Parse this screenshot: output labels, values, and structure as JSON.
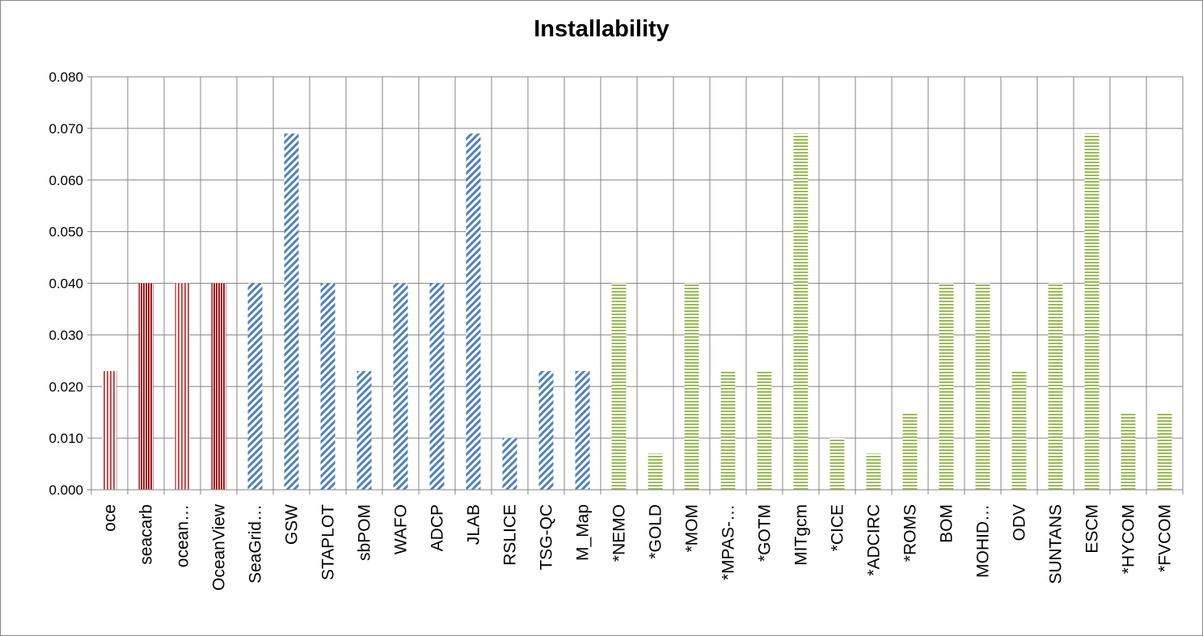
{
  "chart_data": {
    "type": "bar",
    "title": "Installability",
    "xlabel": "",
    "ylabel": "",
    "ylim": [
      0,
      0.08
    ],
    "yticks": [
      "0.000",
      "0.010",
      "0.020",
      "0.030",
      "0.040",
      "0.050",
      "0.060",
      "0.070",
      "0.080"
    ],
    "grid": true,
    "legend": "none",
    "categories": [
      "oce",
      "seacarb",
      "ocean…",
      "OceanView",
      "SeaGrid…",
      "GSW",
      "STAPLOT",
      "sbPOM",
      "WAFO",
      "ADCP",
      "JLAB",
      "RSLICE",
      "TSG-QC",
      "M_Map",
      "*NEMO",
      "*GOLD",
      "*MOM",
      "*MPAS-…",
      "*GOTM",
      "MITgcm",
      "*CICE",
      "*ADCIRC",
      "*ROMS",
      "BOM",
      "MOHID…",
      "ODV",
      "SUNTANS",
      "ESCM",
      "*HYCOM",
      "*FVCOM"
    ],
    "values": [
      0.023,
      0.04,
      0.04,
      0.04,
      0.04,
      0.069,
      0.04,
      0.023,
      0.04,
      0.04,
      0.069,
      0.01,
      0.023,
      0.023,
      0.04,
      0.007,
      0.04,
      0.023,
      0.023,
      0.069,
      0.01,
      0.007,
      0.015,
      0.04,
      0.04,
      0.023,
      0.04,
      0.069,
      0.015,
      0.015
    ],
    "groups": [
      {
        "pattern": "vertical-stripes",
        "color": "#c0504d",
        "dark_color": "#a0151a",
        "count": 4
      },
      {
        "pattern": "diagonal-stripes",
        "color": "#4f81bd",
        "count": 10
      },
      {
        "pattern": "horizontal-stripes",
        "color": "#9bbb59",
        "count": 16
      }
    ]
  }
}
